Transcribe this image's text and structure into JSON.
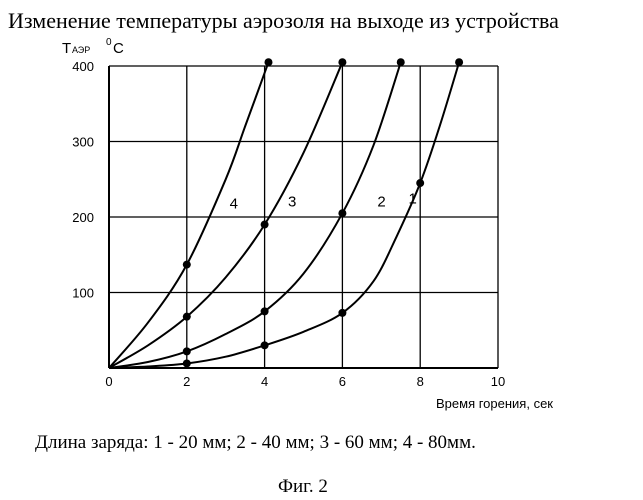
{
  "chart_data": {
    "type": "line",
    "title": "Изменение температуры аэрозоля на выходе из устройства",
    "ylabel_main": "Т",
    "ylabel_sub": "АЭР",
    "ylabel_sup": "0",
    "ylabel_unit": "С",
    "xlabel": "Время горения, сек",
    "xlim": [
      0,
      10
    ],
    "ylim": [
      0,
      400
    ],
    "xticks": [
      0,
      2,
      4,
      6,
      8,
      10
    ],
    "yticks": [
      100,
      200,
      300,
      400
    ],
    "grid": true,
    "series": [
      {
        "name": "1",
        "x": [
          0,
          2,
          4,
          6,
          8,
          9
        ],
        "y": [
          0,
          6,
          30,
          73,
          245,
          405
        ],
        "curve": [
          [
            0,
            0
          ],
          [
            1,
            2
          ],
          [
            2,
            6
          ],
          [
            3,
            15
          ],
          [
            4,
            30
          ],
          [
            5,
            48
          ],
          [
            6,
            73
          ],
          [
            6.8,
            115
          ],
          [
            7.4,
            175
          ],
          [
            8,
            245
          ],
          [
            8.5,
            320
          ],
          [
            9,
            405
          ]
        ]
      },
      {
        "name": "2",
        "x": [
          0,
          2,
          4,
          6,
          7.5
        ],
        "y": [
          0,
          22,
          75,
          205,
          405
        ],
        "curve": [
          [
            0,
            0
          ],
          [
            1,
            8
          ],
          [
            2,
            22
          ],
          [
            3,
            45
          ],
          [
            4,
            75
          ],
          [
            5,
            125
          ],
          [
            6,
            205
          ],
          [
            6.8,
            295
          ],
          [
            7.5,
            405
          ]
        ]
      },
      {
        "name": "3",
        "x": [
          0,
          2,
          4,
          6
        ],
        "y": [
          0,
          68,
          190,
          405
        ],
        "curve": [
          [
            0,
            0
          ],
          [
            1,
            30
          ],
          [
            2,
            68
          ],
          [
            3,
            120
          ],
          [
            4,
            190
          ],
          [
            5,
            285
          ],
          [
            6,
            405
          ]
        ]
      },
      {
        "name": "4",
        "x": [
          0,
          2,
          4.1
        ],
        "y": [
          0,
          137,
          405
        ],
        "curve": [
          [
            0,
            0
          ],
          [
            1,
            60
          ],
          [
            2,
            137
          ],
          [
            3,
            250
          ],
          [
            3.5,
            320
          ],
          [
            4.1,
            405
          ]
        ]
      }
    ],
    "series_labels": [
      {
        "name": "1",
        "x": 7.7,
        "y": 218
      },
      {
        "name": "2",
        "x": 6.9,
        "y": 214
      },
      {
        "name": "3",
        "x": 4.6,
        "y": 214
      },
      {
        "name": "4",
        "x": 3.1,
        "y": 211
      }
    ]
  },
  "caption": "Длина заряда: 1 - 20 мм; 2 - 40 мм; 3 - 60 мм; 4 - 80мм.",
  "figure_label": "Фиг. 2"
}
